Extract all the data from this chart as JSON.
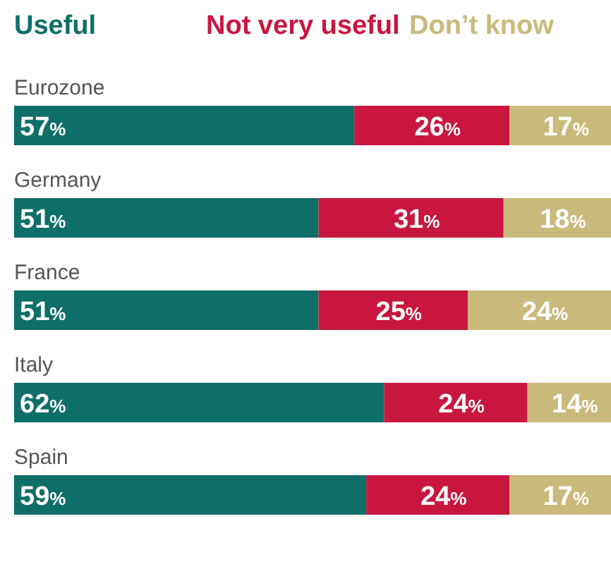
{
  "chart_data": {
    "type": "bar",
    "orientation": "horizontal",
    "stacked": true,
    "legend": "top",
    "xlim": [
      0,
      100
    ],
    "categories": [
      "Eurozone",
      "Germany",
      "France",
      "Italy",
      "Spain"
    ],
    "series": [
      {
        "name": "Useful",
        "color": "#0e6e68",
        "values": [
          57,
          51,
          51,
          62,
          59
        ],
        "value_labels": [
          "57%",
          "51%",
          "51%",
          "62%",
          "59%"
        ]
      },
      {
        "name": "Not very useful",
        "color": "#c8163f",
        "values": [
          26,
          31,
          25,
          24,
          24
        ],
        "value_labels": [
          "26%",
          "31%",
          "25%",
          "24%",
          "24%"
        ]
      },
      {
        "name": "Don’t know",
        "color": "#c9b97b",
        "values": [
          17,
          18,
          24,
          14,
          17
        ],
        "value_labels": [
          "17%",
          "18%",
          "24%",
          "14%",
          "17%"
        ]
      }
    ]
  }
}
